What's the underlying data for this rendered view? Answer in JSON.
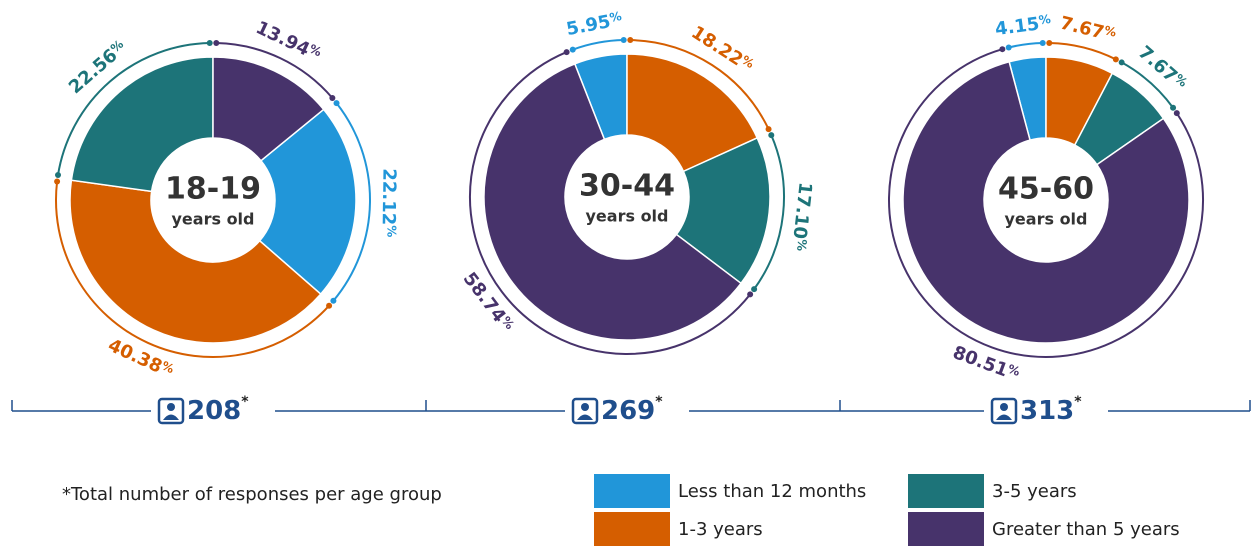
{
  "chart_data": [
    {
      "type": "pie",
      "title": "18-19",
      "subtitle": "years old",
      "categories": [
        "Less than 12 months",
        "1-3 years",
        "3-5 years",
        "Greater than 5 years"
      ],
      "colors": [
        "#2196d9",
        "#d55e00",
        "#1d7479",
        "#47336b"
      ],
      "values": [
        22.12,
        40.38,
        22.56,
        13.94
      ],
      "value_labels": [
        "22.12",
        "40.38",
        "22.56",
        "13.94"
      ],
      "unit": "%",
      "count": 208,
      "count_note": "*"
    },
    {
      "type": "pie",
      "title": "30-44",
      "subtitle": "years old",
      "categories": [
        "Less than 12 months",
        "1-3 years",
        "3-5 years",
        "Greater than 5 years"
      ],
      "colors": [
        "#2196d9",
        "#d55e00",
        "#1d7479",
        "#47336b"
      ],
      "values": [
        5.95,
        18.22,
        17.1,
        58.74
      ],
      "value_labels": [
        "5.95",
        "18.22",
        "17.10",
        "58.74"
      ],
      "unit": "%",
      "count": 269,
      "count_note": "*"
    },
    {
      "type": "pie",
      "title": "45-60",
      "subtitle": "years old",
      "categories": [
        "Less than 12 months",
        "1-3 years",
        "3-5 years",
        "Greater than 5 years"
      ],
      "colors": [
        "#2196d9",
        "#d55e00",
        "#1d7479",
        "#47336b"
      ],
      "values": [
        4.15,
        7.67,
        7.67,
        80.51
      ],
      "value_labels": [
        "4.15",
        "7.67",
        "7.67",
        "80.51"
      ],
      "unit": "%",
      "count": 313,
      "count_note": "*"
    }
  ],
  "footnote": "*Total number of responses per age group"
}
